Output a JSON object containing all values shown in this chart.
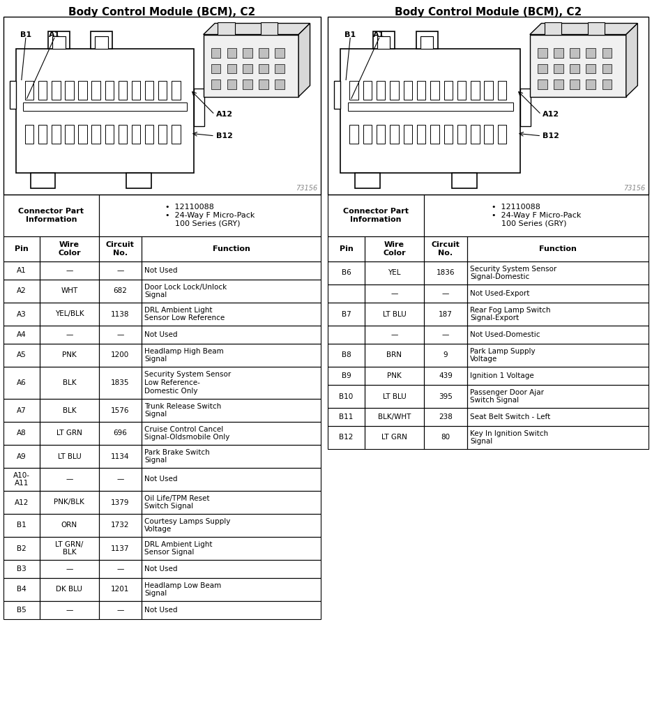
{
  "title": "Body Control Module (BCM), C2",
  "connector_part_info": "Connector Part\nInformation",
  "connector_specs": "•  12110088\n•  24-Way F Micro-Pack\n    100 Series (GRY)",
  "left_table_headers": [
    "Pin",
    "Wire\nColor",
    "Circuit\nNo.",
    "Function"
  ],
  "left_rows": [
    [
      "A1",
      "—",
      "—",
      "Not Used"
    ],
    [
      "A2",
      "WHT",
      "682",
      "Door Lock Lock/Unlock\nSignal"
    ],
    [
      "A3",
      "YEL/BLK",
      "1138",
      "DRL Ambient Light\nSensor Low Reference"
    ],
    [
      "A4",
      "—",
      "—",
      "Not Used"
    ],
    [
      "A5",
      "PNK",
      "1200",
      "Headlamp High Beam\nSignal"
    ],
    [
      "A6",
      "BLK",
      "1835",
      "Security System Sensor\nLow Reference-\nDomestic Only"
    ],
    [
      "A7",
      "BLK",
      "1576",
      "Trunk Release Switch\nSignal"
    ],
    [
      "A8",
      "LT GRN",
      "696",
      "Cruise Control Cancel\nSignal-Oldsmobile Only"
    ],
    [
      "A9",
      "LT BLU",
      "1134",
      "Park Brake Switch\nSignal"
    ],
    [
      "A10-\nA11",
      "—",
      "—",
      "Not Used"
    ],
    [
      "A12",
      "PNK/BLK",
      "1379",
      "Oil Life/TPM Reset\nSwitch Signal"
    ],
    [
      "B1",
      "ORN",
      "1732",
      "Courtesy Lamps Supply\nVoltage"
    ],
    [
      "B2",
      "LT GRN/\nBLK",
      "1137",
      "DRL Ambient Light\nSensor Signal"
    ],
    [
      "B3",
      "—",
      "—",
      "Not Used"
    ],
    [
      "B4",
      "DK BLU",
      "1201",
      "Headlamp Low Beam\nSignal"
    ],
    [
      "B5",
      "—",
      "—",
      "Not Used"
    ]
  ],
  "right_table_headers": [
    "Pin",
    "Wire\nColor",
    "Circuit\nNo.",
    "Function"
  ],
  "right_rows": [
    [
      "B6",
      "YEL",
      "1836",
      "Security System Sensor\nSignal-Domestic"
    ],
    [
      "",
      "—",
      "—",
      "Not Used-Export"
    ],
    [
      "B7",
      "LT BLU",
      "187",
      "Rear Fog Lamp Switch\nSignal-Export"
    ],
    [
      "",
      "—",
      "—",
      "Not Used-Domestic"
    ],
    [
      "B8",
      "BRN",
      "9",
      "Park Lamp Supply\nVoltage"
    ],
    [
      "B9",
      "PNK",
      "439",
      "Ignition 1 Voltage"
    ],
    [
      "B10",
      "LT BLU",
      "395",
      "Passenger Door Ajar\nSwitch Signal"
    ],
    [
      "B11",
      "BLK/WHT",
      "238",
      "Seat Belt Switch - Left"
    ],
    [
      "B12",
      "LT GRN",
      "80",
      "Key In Ignition Switch\nSignal"
    ]
  ],
  "bg_color": "#ffffff",
  "border_color": "#000000",
  "text_color": "#000000",
  "watermark": "73156",
  "col_ratios": [
    0.115,
    0.185,
    0.135,
    0.565
  ]
}
